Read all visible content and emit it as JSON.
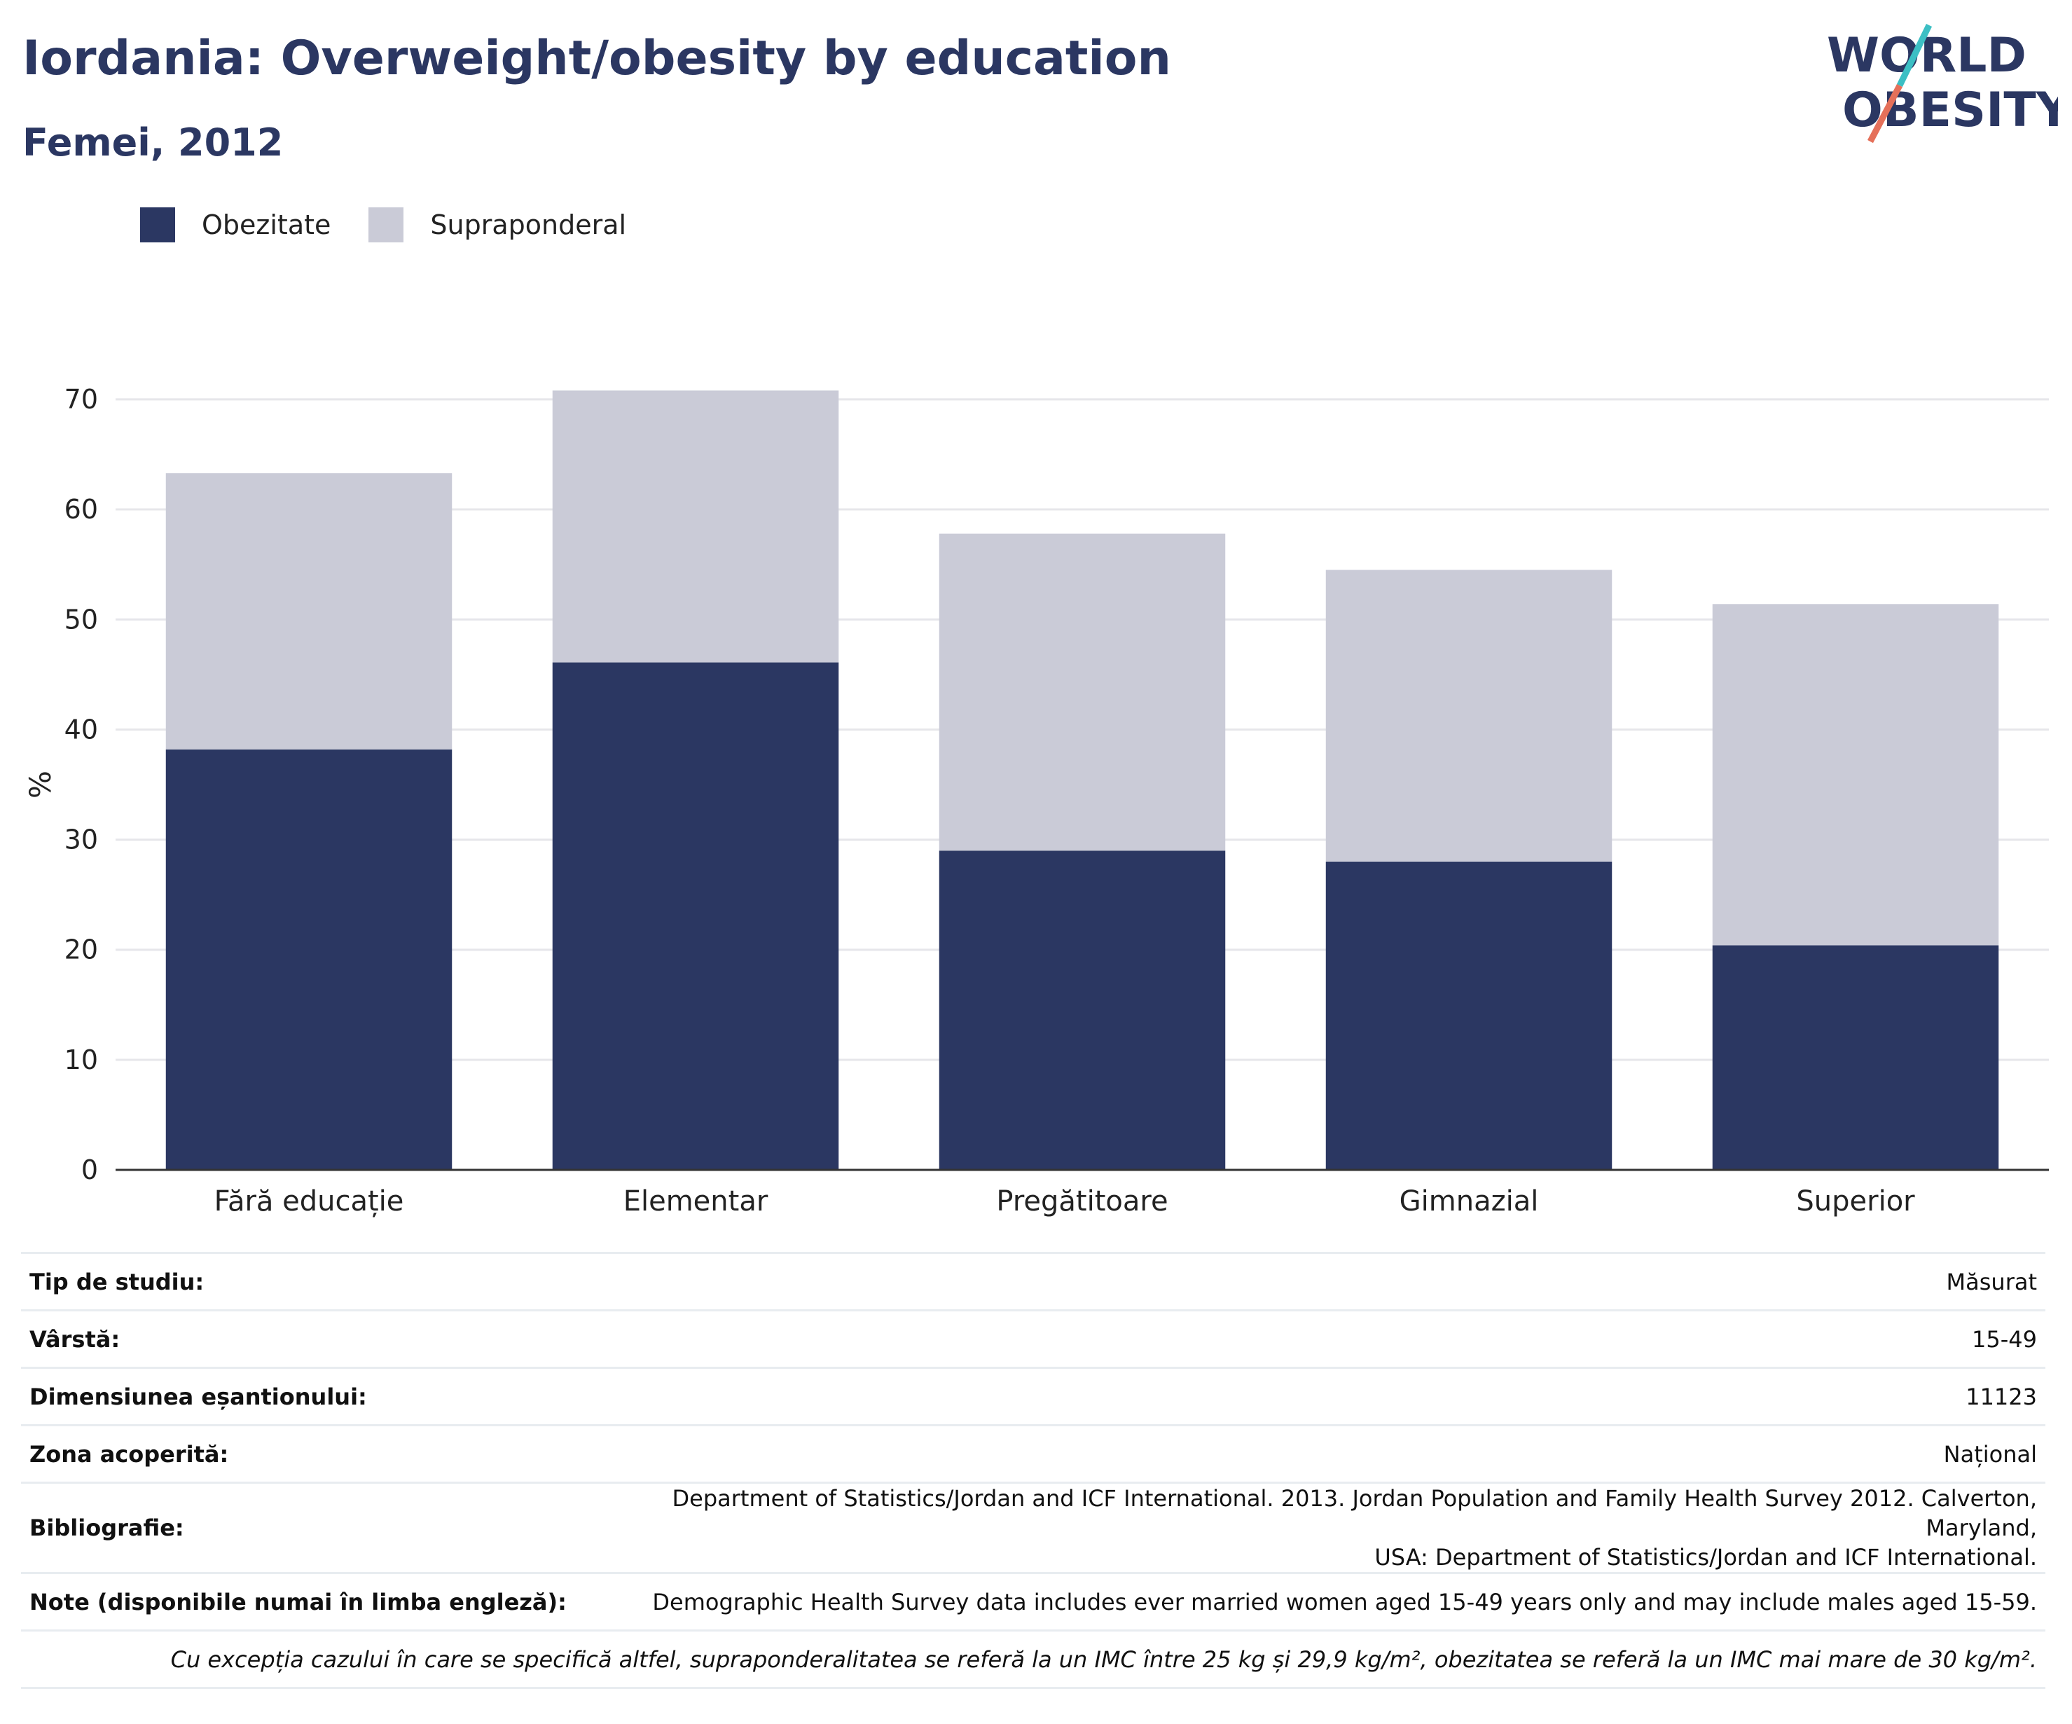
{
  "header": {
    "title": "Iordania: Overweight/obesity by education",
    "subtitle": "Femei, 2012"
  },
  "logo": {
    "line1": "WORLD",
    "line2": "OBESITY",
    "icon": "world-obesity-logo"
  },
  "colors": {
    "obesity": "#2b3762",
    "overweight": "#cacbd7",
    "grid": "#e6e6ea",
    "axis": "#333333"
  },
  "chart_data": {
    "type": "bar",
    "stacked": true,
    "categories": [
      "Fără educație",
      "Elementar",
      "Pregătitoare",
      "Gimnazial",
      "Superior"
    ],
    "series": [
      {
        "name": "Obezitate",
        "values": [
          38.2,
          46.1,
          29.0,
          28.0,
          20.4
        ]
      },
      {
        "name": "Supraponderal",
        "values": [
          25.1,
          24.7,
          28.8,
          26.5,
          31.0
        ]
      }
    ],
    "ylabel": "%",
    "yticks": [
      0,
      10,
      20,
      30,
      40,
      50,
      60,
      70
    ],
    "ylim": [
      0,
      70
    ],
    "grid": true,
    "legend_position": "top-left"
  },
  "meta": [
    {
      "key": "Tip de studiu:",
      "value": "Măsurat"
    },
    {
      "key": "Vârstă:",
      "value": "15-49"
    },
    {
      "key": "Dimensiunea eșantionului:",
      "value": "11123"
    },
    {
      "key": "Zona acoperită:",
      "value": "Național"
    },
    {
      "key": "Bibliografie:",
      "value_line1": "Department of Statistics/Jordan and ICF International. 2013. Jordan Population and Family Health Survey 2012. Calverton, Maryland,",
      "value_line2": "USA: Department of Statistics/Jordan and ICF International."
    },
    {
      "key": "Note (disponibile numai în limba engleză):",
      "value": "Demographic Health Survey data includes ever married women aged 15-49 years only and may include males aged 15-59."
    }
  ],
  "footnote": "Cu excepția cazului în care se specifică altfel, supraponderalitatea se referă la un IMC între 25 kg și 29,9 kg/m², obezitatea se referă la un IMC mai mare de 30 kg/m²."
}
